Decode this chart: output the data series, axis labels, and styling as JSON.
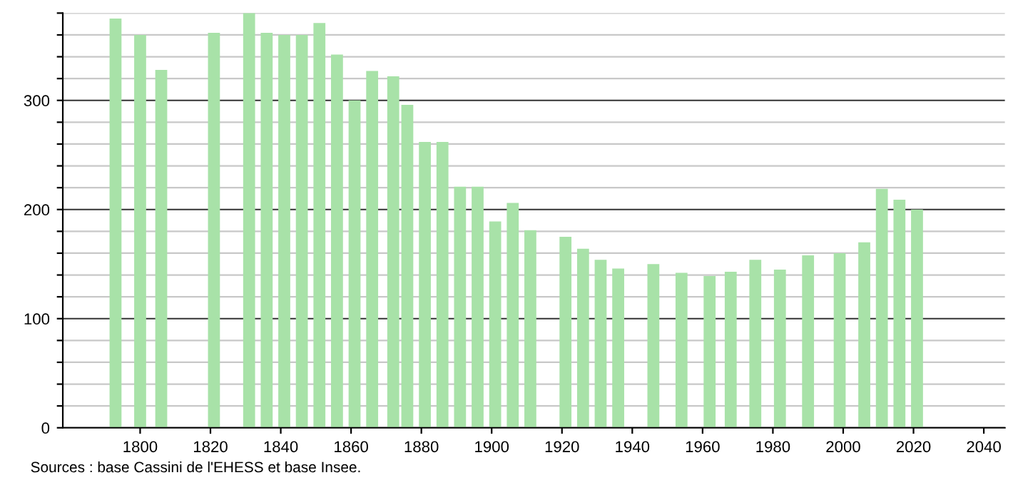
{
  "chart_data": {
    "type": "bar",
    "x": [
      1793,
      1800,
      1806,
      1821,
      1831,
      1836,
      1841,
      1846,
      1851,
      1856,
      1861,
      1866,
      1872,
      1876,
      1881,
      1886,
      1891,
      1896,
      1901,
      1906,
      1911,
      1921,
      1926,
      1931,
      1936,
      1946,
      1954,
      1962,
      1968,
      1975,
      1982,
      1990,
      1999,
      2006,
      2011,
      2016,
      2021
    ],
    "values": [
      375,
      360,
      328,
      362,
      380,
      362,
      360,
      360,
      371,
      342,
      300,
      327,
      322,
      296,
      262,
      262,
      221,
      221,
      189,
      206,
      181,
      175,
      164,
      154,
      146,
      150,
      142,
      139,
      143,
      154,
      145,
      158,
      160,
      170,
      219,
      209,
      200
    ],
    "color": "#a8e2a8",
    "xlim": [
      1778,
      2046
    ],
    "xticks": [
      1800,
      1820,
      1840,
      1860,
      1880,
      1900,
      1920,
      1940,
      1960,
      1980,
      2000,
      2020,
      2040
    ],
    "ylim": [
      0,
      380
    ],
    "yticks": [
      0,
      {
        "value": 20,
        "label": null
      },
      {
        "value": 40,
        "label": null
      },
      {
        "value": 60,
        "label": null
      },
      {
        "value": 80,
        "label": null
      },
      100,
      {
        "value": 120,
        "label": null
      },
      {
        "value": 140,
        "label": null
      },
      {
        "value": 160,
        "label": null
      },
      {
        "value": 180,
        "label": null
      },
      200,
      {
        "value": 220,
        "label": null
      },
      {
        "value": 240,
        "label": null
      },
      {
        "value": 260,
        "label": null
      },
      {
        "value": 280,
        "label": null
      },
      300,
      {
        "value": 320,
        "label": null
      },
      {
        "value": 340,
        "label": null
      },
      {
        "value": 360,
        "label": null
      },
      {
        "value": 380,
        "label": null
      }
    ],
    "grid": "y",
    "legend": false,
    "annotations": [
      "Sources : base Cassini de l'EHESS et base Insee."
    ]
  }
}
